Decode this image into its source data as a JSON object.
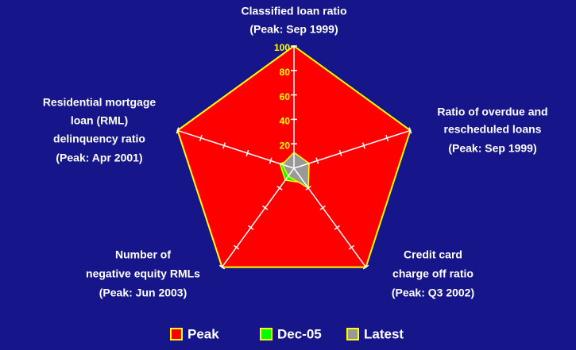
{
  "chart_data": {
    "type": "radar",
    "categories": [
      [
        "Classified loan ratio",
        "(Peak: Sep 1999)"
      ],
      [
        "Ratio of overdue and",
        "rescheduled loans",
        "(Peak: Sep 1999)"
      ],
      [
        "Credit card",
        "charge off ratio",
        "(Peak: Q3 2002)"
      ],
      [
        "Number of",
        "negative equity RMLs",
        "(Peak: Jun 2003)"
      ],
      [
        "Residential mortgage",
        "loan (RML)",
        "delinquency ratio",
        "(Peak: Apr 2001)"
      ]
    ],
    "rlim": [
      0,
      100
    ],
    "rticks": [
      20,
      40,
      60,
      80,
      100
    ],
    "series": [
      {
        "name": "Peak",
        "color": "#ff0000",
        "values": [
          100,
          100,
          100,
          100,
          100
        ]
      },
      {
        "name": "Dec-05",
        "color": "#00ff00",
        "values": [
          8,
          8,
          15,
          12,
          12
        ]
      },
      {
        "name": "Latest",
        "color": "#999999",
        "values": [
          13,
          13,
          20,
          8,
          10
        ]
      }
    ]
  }
}
